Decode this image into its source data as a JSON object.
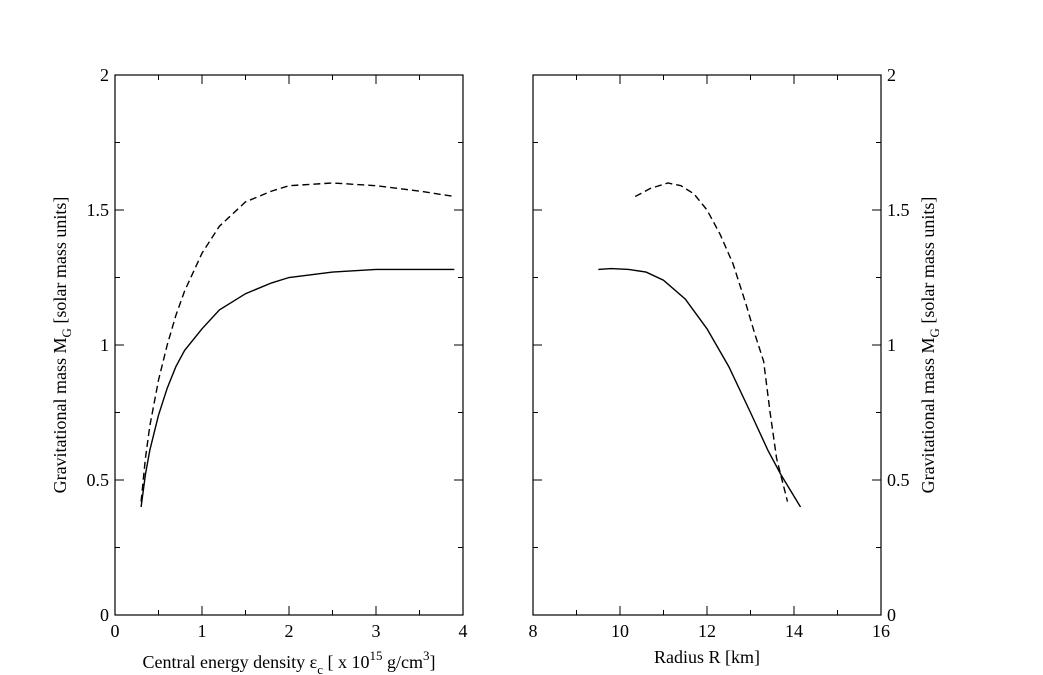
{
  "chart_data": [
    {
      "type": "line",
      "xlim": [
        0,
        4
      ],
      "ylim": [
        0,
        2
      ],
      "xticks": [
        "0",
        "1",
        "2",
        "3",
        "4"
      ],
      "yticks": [
        "0",
        "0.5",
        "1",
        "1.5",
        "2"
      ],
      "xlabel": "Central energy density εc [ x 10^15 g/cm^3]",
      "xlabel_parts": {
        "pre": "Central energy density ε",
        "sub": "c",
        "mid1": " [ x 10",
        "sup1": "15",
        "mid2": " g/cm",
        "sup2": "3",
        "post": "]"
      },
      "ylabel": "Gravitational mass MG [solar mass units]",
      "ylabel_parts": {
        "pre": "Gravitational mass M",
        "sub": "G",
        "post": " [solar mass units]"
      },
      "grid": false,
      "series": [
        {
          "style": "solid",
          "x": [
            0.3,
            0.35,
            0.4,
            0.5,
            0.6,
            0.7,
            0.8,
            1.0,
            1.2,
            1.5,
            1.8,
            2.0,
            2.5,
            3.0,
            3.5,
            3.9
          ],
          "y": [
            0.4,
            0.52,
            0.61,
            0.74,
            0.84,
            0.92,
            0.98,
            1.06,
            1.13,
            1.19,
            1.23,
            1.25,
            1.27,
            1.28,
            1.28,
            1.28
          ]
        },
        {
          "style": "dashed",
          "x": [
            0.3,
            0.35,
            0.4,
            0.5,
            0.6,
            0.7,
            0.8,
            1.0,
            1.2,
            1.5,
            1.8,
            2.0,
            2.5,
            3.0,
            3.5,
            3.9
          ],
          "y": [
            0.42,
            0.58,
            0.7,
            0.87,
            1.0,
            1.11,
            1.2,
            1.34,
            1.44,
            1.53,
            1.57,
            1.59,
            1.6,
            1.59,
            1.57,
            1.55
          ]
        }
      ]
    },
    {
      "type": "line",
      "xlim": [
        8,
        16
      ],
      "ylim": [
        0,
        2
      ],
      "xticks": [
        "8",
        "10",
        "12",
        "14",
        "16"
      ],
      "yticks": [
        "0",
        "0.5",
        "1",
        "1.5",
        "2"
      ],
      "xlabel": "Radius R [km]",
      "ylabel": "Gravitational mass MG [solar mass units]",
      "ylabel_parts": {
        "pre": "Gravitational mass M",
        "sub": "G",
        "post": " [solar mass units]"
      },
      "grid": false,
      "series": [
        {
          "style": "solid",
          "x": [
            9.5,
            9.8,
            10.2,
            10.6,
            11.0,
            11.5,
            12.0,
            12.5,
            13.0,
            13.4,
            13.7,
            14.15
          ],
          "y": [
            1.28,
            1.283,
            1.28,
            1.27,
            1.24,
            1.17,
            1.06,
            0.92,
            0.75,
            0.61,
            0.52,
            0.4
          ]
        },
        {
          "style": "dashed",
          "x": [
            10.35,
            10.7,
            11.1,
            11.4,
            11.7,
            12.0,
            12.3,
            12.6,
            12.9,
            13.1,
            13.3,
            13.45,
            13.6,
            13.85
          ],
          "y": [
            1.55,
            1.58,
            1.6,
            1.59,
            1.56,
            1.5,
            1.41,
            1.3,
            1.15,
            1.04,
            0.94,
            0.75,
            0.58,
            0.42
          ]
        }
      ]
    }
  ]
}
